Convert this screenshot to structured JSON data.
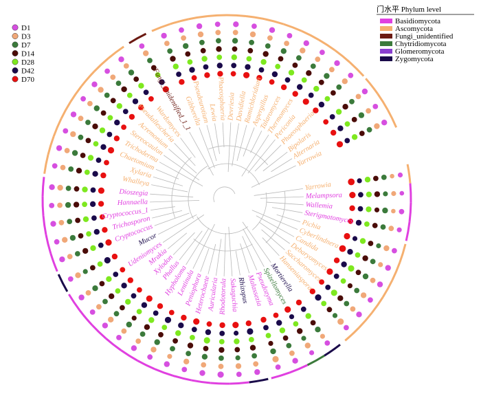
{
  "phylum_legend": {
    "title": "门水平 Phylum level",
    "items": [
      {
        "label": "Basidiomycota",
        "color": "#e040e0"
      },
      {
        "label": "Ascomycota",
        "color": "#f5b070"
      },
      {
        "label": "Fungi_unidentified",
        "color": "#6b1a12"
      },
      {
        "label": "Chytridiomycota",
        "color": "#3b7a3b"
      },
      {
        "label": "Glomeromycota",
        "color": "#8a3fd0"
      },
      {
        "label": "Zygomycota",
        "color": "#1a0a4a"
      }
    ]
  },
  "time_legend": [
    {
      "label": "D1",
      "color": "#d64fe0"
    },
    {
      "label": "D3",
      "color": "#f0a878"
    },
    {
      "label": "D7",
      "color": "#3b7a3b"
    },
    {
      "label": "D14",
      "color": "#4a0c08"
    },
    {
      "label": "D28",
      "color": "#7ee81f"
    },
    {
      "label": "D42",
      "color": "#1a0a4a"
    },
    {
      "label": "D70",
      "color": "#e81010"
    }
  ],
  "taxa": [
    {
      "name": "Yarrowia",
      "phylum": "Ascomycota",
      "angle": -8,
      "sizes": [
        0.5,
        0.4,
        0.6,
        0.6,
        0.7,
        0.5,
        0.9
      ]
    },
    {
      "name": "Melampsora",
      "phylum": "Basidiomycota",
      "angle": -2,
      "sizes": [
        0.4,
        0.5,
        0.5,
        0.7,
        0.7,
        0.6,
        0.8
      ]
    },
    {
      "name": "Wallemia",
      "phylum": "Basidiomycota",
      "angle": 4,
      "sizes": [
        0.6,
        0.4,
        0.7,
        0.5,
        0.7,
        0.6,
        0.7
      ]
    },
    {
      "name": "Sterigmatomyces",
      "phylum": "Basidiomycota",
      "angle": 10,
      "sizes": [
        0.5,
        0.6,
        0.6,
        0.6,
        0.6,
        0.7,
        0.6
      ]
    },
    {
      "name": "Pichia",
      "phylum": "Ascomycota",
      "angle": 17,
      "sizes": [
        0.6,
        0.7,
        0.5,
        0.6,
        0.7,
        0.5,
        0.8
      ]
    },
    {
      "name": "Cyberlindnera",
      "phylum": "Ascomycota",
      "angle": 23,
      "sizes": [
        0.7,
        0.5,
        0.6,
        0.7,
        0.6,
        0.7,
        0.9
      ]
    },
    {
      "name": "Candida",
      "phylum": "Ascomycota",
      "angle": 29,
      "sizes": [
        0.7,
        0.6,
        0.7,
        0.6,
        0.8,
        0.7,
        0.7
      ]
    },
    {
      "name": "Debaryomyces",
      "phylum": "Ascomycota",
      "angle": 35,
      "sizes": [
        0.6,
        0.7,
        0.6,
        0.5,
        0.6,
        0.6,
        0.8
      ]
    },
    {
      "name": "Saccharomyces",
      "phylum": "Ascomycota",
      "angle": 41,
      "sizes": [
        0.7,
        0.6,
        0.6,
        0.7,
        0.8,
        0.6,
        0.6
      ]
    },
    {
      "name": "Hanseniaspora",
      "phylum": "Ascomycota",
      "angle": 47,
      "sizes": [
        0.6,
        0.8,
        0.5,
        0.6,
        0.6,
        0.8,
        0.7
      ]
    },
    {
      "name": "Mortierella",
      "phylum": "Zygomycota",
      "angle": 55,
      "sizes": [
        0.6,
        0.5,
        0.7,
        0.6,
        0.7,
        0.6,
        0.7
      ]
    },
    {
      "name": "Spizellomyces",
      "phylum": "Chytridiomycota",
      "angle": 61,
      "sizes": [
        0.5,
        0.7,
        0.5,
        0.7,
        0.6,
        0.5,
        0.8
      ]
    },
    {
      "name": "Pseudozyma",
      "phylum": "Basidiomycota",
      "angle": 67,
      "sizes": [
        0.7,
        0.6,
        0.6,
        0.6,
        0.7,
        0.7,
        0.6
      ]
    },
    {
      "name": "Malassezia",
      "phylum": "Basidiomycota",
      "angle": 73,
      "sizes": [
        0.6,
        0.8,
        0.7,
        0.5,
        0.6,
        0.6,
        0.7
      ]
    },
    {
      "name": "Rhizopus",
      "phylum": "Zygomycota",
      "angle": 80,
      "sizes": [
        0.7,
        0.6,
        0.6,
        0.7,
        0.6,
        0.8,
        0.7
      ]
    },
    {
      "name": "Sakaguchia",
      "phylum": "Basidiomycota",
      "angle": 86,
      "sizes": [
        0.6,
        0.7,
        0.5,
        0.6,
        0.7,
        0.5,
        0.8
      ]
    },
    {
      "name": "Rhodotorula",
      "phylum": "Basidiomycota",
      "angle": 92,
      "sizes": [
        0.8,
        0.6,
        0.6,
        0.7,
        0.6,
        0.6,
        0.7
      ]
    },
    {
      "name": "Auricularia",
      "phylum": "Basidiomycota",
      "angle": 98,
      "sizes": [
        0.7,
        0.6,
        0.7,
        0.6,
        0.8,
        0.7,
        0.6
      ]
    },
    {
      "name": "Heterochaete",
      "phylum": "Basidiomycota",
      "angle": 104,
      "sizes": [
        0.6,
        0.7,
        0.6,
        0.7,
        0.6,
        0.6,
        0.8
      ]
    },
    {
      "name": "Peniophora",
      "phylum": "Basidiomycota",
      "angle": 110,
      "sizes": [
        0.7,
        0.5,
        0.6,
        0.6,
        0.7,
        0.7,
        0.7
      ]
    },
    {
      "name": "Lentinula",
      "phylum": "Basidiomycota",
      "angle": 116,
      "sizes": [
        0.6,
        0.7,
        0.7,
        0.6,
        0.6,
        0.8,
        0.6
      ]
    },
    {
      "name": "Hypholoma",
      "phylum": "Basidiomycota",
      "angle": 122,
      "sizes": [
        0.7,
        0.6,
        0.6,
        0.7,
        0.7,
        0.6,
        0.7
      ]
    },
    {
      "name": "Phallus",
      "phylum": "Basidiomycota",
      "angle": 128,
      "sizes": [
        0.6,
        0.6,
        0.7,
        0.5,
        0.6,
        0.7,
        0.8
      ]
    },
    {
      "name": "Xylodon",
      "phylum": "Basidiomycota",
      "angle": 134,
      "sizes": [
        0.7,
        0.7,
        0.6,
        0.6,
        0.7,
        0.6,
        0.6
      ]
    },
    {
      "name": "Mrakia",
      "phylum": "Basidiomycota",
      "angle": 140,
      "sizes": [
        0.6,
        0.6,
        0.6,
        0.7,
        0.6,
        0.7,
        0.7
      ]
    },
    {
      "name": "Udeniomyces",
      "phylum": "Basidiomycota",
      "angle": 146,
      "sizes": [
        0.7,
        0.6,
        0.7,
        0.6,
        0.7,
        0.6,
        0.6
      ]
    },
    {
      "name": "Mucor",
      "phylum": "Zygomycota",
      "angle": 153,
      "sizes": [
        0.6,
        0.7,
        0.5,
        0.6,
        0.6,
        0.8,
        0.7
      ]
    },
    {
      "name": "Cryptococcus",
      "phylum": "Basidiomycota",
      "angle": 160,
      "sizes": [
        0.7,
        0.6,
        0.6,
        0.7,
        0.7,
        0.6,
        0.8
      ]
    },
    {
      "name": "Trichosporon",
      "phylum": "Basidiomycota",
      "angle": 166,
      "sizes": [
        0.6,
        0.7,
        0.7,
        0.6,
        0.6,
        0.7,
        0.7
      ]
    },
    {
      "name": "Cryptococcus_1",
      "phylum": "Basidiomycota",
      "angle": 172,
      "sizes": [
        0.7,
        0.6,
        0.6,
        0.6,
        0.7,
        0.6,
        0.6
      ]
    },
    {
      "name": "Hannaella",
      "phylum": "Basidiomycota",
      "angle": 178,
      "sizes": [
        0.6,
        0.6,
        0.7,
        0.7,
        0.6,
        0.7,
        0.7
      ]
    },
    {
      "name": "Dioszegia",
      "phylum": "Basidiomycota",
      "angle": 184,
      "sizes": [
        0.7,
        0.7,
        0.6,
        0.6,
        0.7,
        0.6,
        0.8
      ]
    },
    {
      "name": "Whalleya",
      "phylum": "Ascomycota",
      "angle": 191,
      "sizes": [
        0.6,
        0.6,
        0.6,
        0.7,
        0.6,
        0.7,
        0.7
      ]
    },
    {
      "name": "Xylaria",
      "phylum": "Ascomycota",
      "angle": 197,
      "sizes": [
        0.7,
        0.6,
        0.7,
        0.6,
        0.7,
        0.6,
        0.6
      ]
    },
    {
      "name": "Chaetomium",
      "phylum": "Ascomycota",
      "angle": 203,
      "sizes": [
        0.6,
        0.7,
        0.6,
        0.6,
        0.6,
        0.7,
        0.8
      ]
    },
    {
      "name": "Trichoderma",
      "phylum": "Ascomycota",
      "angle": 209,
      "sizes": [
        0.7,
        0.6,
        0.6,
        0.7,
        0.7,
        0.6,
        0.7
      ]
    },
    {
      "name": "Stereocaulon",
      "phylum": "Ascomycota",
      "angle": 215,
      "sizes": [
        0.6,
        0.6,
        0.7,
        0.6,
        0.6,
        0.7,
        0.6
      ]
    },
    {
      "name": "Acremonium",
      "phylum": "Ascomycota",
      "angle": 221,
      "sizes": [
        0.7,
        0.7,
        0.6,
        0.6,
        0.7,
        0.6,
        0.7
      ]
    },
    {
      "name": "Pseudallescheria",
      "phylum": "Ascomycota",
      "angle": 227,
      "sizes": [
        0.6,
        0.6,
        0.6,
        0.7,
        0.6,
        0.7,
        0.7
      ]
    },
    {
      "name": "Wardomyces",
      "phylum": "Ascomycota",
      "angle": 233,
      "sizes": [
        0.7,
        0.6,
        0.7,
        0.6,
        0.7,
        0.6,
        0.6
      ]
    },
    {
      "name": "Fungi_unidentified_1_1",
      "phylum": "Fungi_unidentified",
      "angle": 241,
      "sizes": [
        0.6,
        0.7,
        0.6,
        0.6,
        0.6,
        0.7,
        0.8
      ]
    },
    {
      "name": "Gibberella",
      "phylum": "Ascomycota",
      "angle": 249,
      "sizes": [
        0.7,
        0.6,
        0.6,
        0.7,
        0.7,
        0.6,
        0.7
      ]
    },
    {
      "name": "Pseudeurotium",
      "phylum": "Ascomycota",
      "angle": 255,
      "sizes": [
        0.6,
        0.6,
        0.7,
        0.6,
        0.6,
        0.7,
        0.6
      ]
    },
    {
      "name": "Lewia",
      "phylum": "Ascomycota",
      "angle": 261,
      "sizes": [
        0.7,
        0.7,
        0.6,
        0.6,
        0.7,
        0.6,
        0.7
      ]
    },
    {
      "name": "Phaeosphaeria",
      "phylum": "Ascomycota",
      "angle": 267,
      "sizes": [
        0.6,
        0.6,
        0.6,
        0.7,
        0.6,
        0.7,
        0.7
      ]
    },
    {
      "name": "Devriesia",
      "phylum": "Ascomycota",
      "angle": 273,
      "sizes": [
        0.7,
        0.6,
        0.7,
        0.6,
        0.7,
        0.6,
        0.6
      ]
    },
    {
      "name": "Davidiella",
      "phylum": "Ascomycota",
      "angle": 279,
      "sizes": [
        0.6,
        0.7,
        0.6,
        0.6,
        0.6,
        0.7,
        0.8
      ]
    },
    {
      "name": "Ramichloridium",
      "phylum": "Ascomycota",
      "angle": 285,
      "sizes": [
        0.7,
        0.6,
        0.6,
        0.7,
        0.7,
        0.6,
        0.7
      ]
    },
    {
      "name": "Aspergillus",
      "phylum": "Ascomycota",
      "angle": 291,
      "sizes": [
        0.6,
        0.6,
        0.7,
        0.6,
        0.6,
        0.7,
        0.6
      ]
    },
    {
      "name": "Talaromyces",
      "phylum": "Ascomycota",
      "angle": 297,
      "sizes": [
        0.7,
        0.7,
        0.6,
        0.6,
        0.7,
        0.6,
        0.7
      ]
    },
    {
      "name": "Thermomyces",
      "phylum": "Ascomycota",
      "angle": 303,
      "sizes": [
        0.6,
        0.6,
        0.6,
        0.7,
        0.6,
        0.7,
        0.7
      ]
    },
    {
      "name": "Periconia",
      "phylum": "Ascomycota",
      "angle": 309,
      "sizes": [
        0.7,
        0.6,
        0.7,
        0.6,
        0.7,
        0.6,
        0.8
      ]
    },
    {
      "name": "Phaeosphaeria",
      "phylum": "Ascomycota",
      "angle": 315,
      "sizes": [
        0.6,
        0.7,
        0.6,
        0.6,
        0.6,
        0.7,
        0.7
      ]
    },
    {
      "name": "Bipolaris",
      "phylum": "Ascomycota",
      "angle": 322,
      "sizes": [
        0.7,
        0.6,
        0.6,
        0.7,
        0.7,
        0.6,
        0.6
      ]
    },
    {
      "name": "Alternaria",
      "phylum": "Ascomycota",
      "angle": 328,
      "sizes": [
        0.6,
        0.6,
        0.7,
        0.6,
        0.6,
        0.7,
        0.7
      ]
    },
    {
      "name": "Yarrowia",
      "phylum": "Ascomycota",
      "angle": 334,
      "sizes": [
        0.7,
        0.7,
        0.6,
        0.6,
        0.7,
        0.6,
        0.8
      ]
    }
  ]
}
